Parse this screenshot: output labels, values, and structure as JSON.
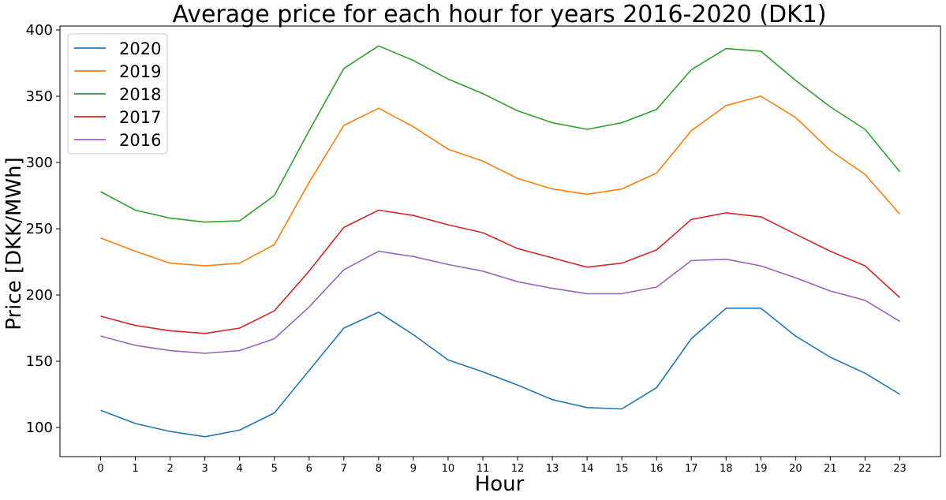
{
  "chart_data": {
    "type": "line",
    "title": "Average price for each hour for years 2016-2020 (DK1)",
    "xlabel": "Hour",
    "ylabel": "Price [DKK/MWh]",
    "x": [
      0,
      1,
      2,
      3,
      4,
      5,
      6,
      7,
      8,
      9,
      10,
      11,
      12,
      13,
      14,
      15,
      16,
      17,
      18,
      19,
      20,
      21,
      22,
      23
    ],
    "xlim": [
      -1.17,
      24.17
    ],
    "ylim": [
      78,
      403
    ],
    "yticks": [
      100,
      150,
      200,
      250,
      300,
      350,
      400
    ],
    "grid": false,
    "legend_position": "upper-left",
    "series": [
      {
        "name": "2020",
        "color": "#1f77b4",
        "values": [
          113,
          103,
          97,
          93,
          98,
          111,
          143,
          175,
          187,
          170,
          151,
          142,
          132,
          121,
          115,
          114,
          130,
          167,
          190,
          190,
          169,
          153,
          141,
          125
        ]
      },
      {
        "name": "2019",
        "color": "#ff7f0e",
        "values": [
          243,
          233,
          224,
          222,
          224,
          238,
          285,
          328,
          341,
          327,
          310,
          301,
          288,
          280,
          276,
          280,
          292,
          324,
          343,
          350,
          334,
          309,
          291,
          261
        ]
      },
      {
        "name": "2018",
        "color": "#2ca02c",
        "values": [
          278,
          264,
          258,
          255,
          256,
          275,
          324,
          371,
          388,
          377,
          363,
          352,
          339,
          330,
          325,
          330,
          340,
          370,
          386,
          384,
          362,
          342,
          325,
          293
        ]
      },
      {
        "name": "2017",
        "color": "#d62728",
        "values": [
          184,
          177,
          173,
          171,
          175,
          188,
          218,
          251,
          264,
          260,
          253,
          247,
          235,
          228,
          221,
          224,
          234,
          257,
          262,
          259,
          246,
          233,
          222,
          198
        ]
      },
      {
        "name": "2016",
        "color": "#9467bd",
        "values": [
          169,
          162,
          158,
          156,
          158,
          167,
          191,
          219,
          233,
          229,
          223,
          218,
          210,
          205,
          201,
          201,
          206,
          226,
          227,
          222,
          213,
          203,
          196,
          180
        ]
      }
    ]
  }
}
